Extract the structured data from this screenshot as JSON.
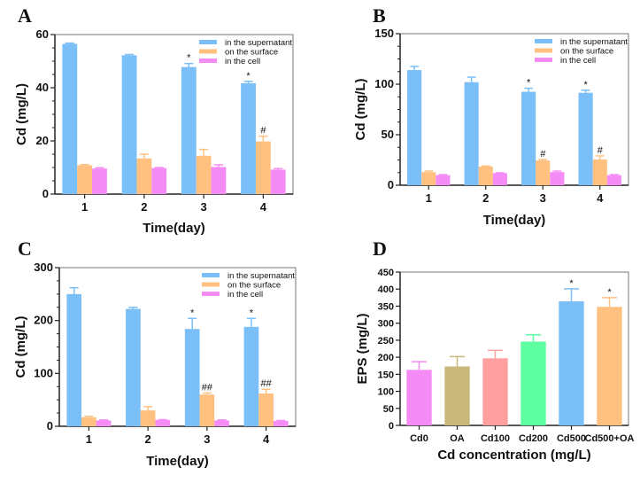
{
  "colors": {
    "supernatant": "#7abff7",
    "surface": "#ffc080",
    "cell": "#f58cf5"
  },
  "chart_data": [
    {
      "panel": "A",
      "type": "bar",
      "categories": [
        "1",
        "2",
        "3",
        "4"
      ],
      "xlabel": "Time(day)",
      "ylabel": "Cd (mg/L)",
      "ylim": [
        0,
        60
      ],
      "yticks": [
        0,
        20,
        40,
        60
      ],
      "legend": "top-right",
      "series": [
        {
          "name": "in the supernatant",
          "values": [
            56.5,
            52.2,
            47.8,
            41.7
          ],
          "errors": [
            0.3,
            0.3,
            1.3,
            0.7
          ],
          "annotations": [
            "",
            "",
            "*",
            "*"
          ]
        },
        {
          "name": "on the surface",
          "values": [
            10.8,
            13.4,
            14.4,
            19.8
          ],
          "errors": [
            0.3,
            1.6,
            2.4,
            2.0
          ],
          "annotations": [
            "",
            "",
            "",
            "#"
          ]
        },
        {
          "name": "in the cell",
          "values": [
            9.6,
            9.8,
            10.2,
            9.2
          ],
          "errors": [
            0.3,
            0.2,
            0.8,
            0.4
          ],
          "annotations": [
            "",
            "",
            "",
            ""
          ]
        }
      ]
    },
    {
      "panel": "B",
      "type": "bar",
      "categories": [
        "1",
        "2",
        "3",
        "4"
      ],
      "xlabel": "Time(day)",
      "ylabel": "Cd (mg/L)",
      "ylim": [
        0,
        150
      ],
      "yticks": [
        0,
        50,
        100,
        150
      ],
      "legend": "top-right",
      "series": [
        {
          "name": "in the supernatant",
          "values": [
            114,
            102,
            92.5,
            91.5
          ],
          "errors": [
            3.5,
            5,
            3.5,
            2.5
          ],
          "annotations": [
            "",
            "",
            "*",
            "*"
          ]
        },
        {
          "name": "on the surface",
          "values": [
            13,
            18.5,
            24.5,
            25.5
          ],
          "errors": [
            1,
            0.5,
            1,
            3.5
          ],
          "annotations": [
            "",
            "",
            "#",
            "#"
          ]
        },
        {
          "name": "in the cell",
          "values": [
            10,
            12,
            13,
            10
          ],
          "errors": [
            0.5,
            0.3,
            1,
            0.5
          ],
          "annotations": [
            "",
            "",
            "",
            ""
          ]
        }
      ]
    },
    {
      "panel": "C",
      "type": "bar",
      "categories": [
        "1",
        "2",
        "3",
        "4"
      ],
      "xlabel": "Time(day)",
      "ylabel": "Cd (mg/L)",
      "ylim": [
        0,
        300
      ],
      "yticks": [
        0,
        100,
        200,
        300
      ],
      "legend": "top-right",
      "series": [
        {
          "name": "in the supernatant",
          "values": [
            250,
            222,
            184,
            188
          ],
          "errors": [
            12,
            3,
            20,
            16
          ],
          "annotations": [
            "",
            "",
            "*",
            "*"
          ]
        },
        {
          "name": "on the surface",
          "values": [
            17,
            30,
            60,
            62
          ],
          "errors": [
            2,
            7,
            3,
            8
          ],
          "annotations": [
            "",
            "",
            "##",
            "##"
          ]
        },
        {
          "name": "in the cell",
          "values": [
            11,
            12,
            11,
            10
          ],
          "errors": [
            1,
            0.5,
            1,
            1
          ],
          "annotations": [
            "",
            "",
            "",
            ""
          ]
        }
      ]
    },
    {
      "panel": "D",
      "type": "bar",
      "categories": [
        "Cd0",
        "OA",
        "Cd100",
        "Cd200",
        "Cd500",
        "Cd500+OA"
      ],
      "xlabel": "Cd concentration (mg/L)",
      "ylabel": "EPS (mg/L)",
      "ylim": [
        0,
        450
      ],
      "yticks": [
        0,
        50,
        100,
        150,
        200,
        250,
        300,
        350,
        400,
        450
      ],
      "values": [
        163,
        173,
        197,
        246,
        364,
        348
      ],
      "errors": [
        24,
        29,
        23,
        20,
        37,
        27
      ],
      "annotations": [
        "",
        "",
        "",
        "",
        "*",
        "*"
      ],
      "bar_colors": [
        "#f58cf5",
        "#c8b87c",
        "#ffa0a0",
        "#5effa0",
        "#7abff7",
        "#ffc080"
      ]
    }
  ]
}
